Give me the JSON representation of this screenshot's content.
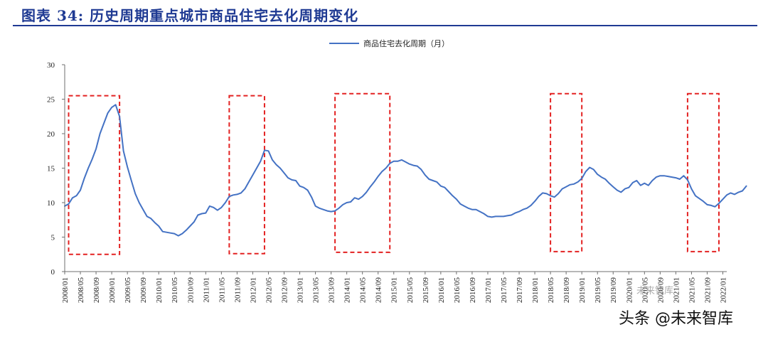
{
  "header": {
    "title": "图表 34: 历史周期重点城市商品住宅去化周期变化"
  },
  "watermark": {
    "text": "头条 @未来智库",
    "logo_text": "未来智库"
  },
  "colors": {
    "title": "#1f3a93",
    "series_line": "#4472c4",
    "highlight_box": "#e32222",
    "axis": "#6f6f6f"
  },
  "chart_data": {
    "type": "line",
    "title": "",
    "xlabel": "",
    "ylabel": "",
    "ylim": [
      0,
      30
    ],
    "yticks": [
      0,
      5,
      10,
      15,
      20,
      25,
      30
    ],
    "grid": false,
    "legend_position": "top-center",
    "xticks": [
      "2008/01",
      "2008/05",
      "2008/09",
      "2009/01",
      "2009/05",
      "2009/09",
      "2010/01",
      "2010/05",
      "2010/09",
      "2011/01",
      "2011/05",
      "2011/09",
      "2012/01",
      "2012/05",
      "2012/09",
      "2013/01",
      "2013/05",
      "2013/09",
      "2014/01",
      "2014/05",
      "2014/09",
      "2015/01",
      "2015/05",
      "2015/09",
      "2016/01",
      "2016/05",
      "2016/09",
      "2017/01",
      "2017/05",
      "2017/09",
      "2018/01",
      "2018/05",
      "2018/09",
      "2019/01",
      "2019/05",
      "2019/09",
      "2020/01",
      "2020/05",
      "2020/09",
      "2021/01",
      "2021/05",
      "2021/09",
      "2022/01"
    ],
    "x_start": "2008/01",
    "series": [
      {
        "name": "商品住宅去化周期（月）",
        "values": [
          9.5,
          9.8,
          10.7,
          11,
          11.8,
          13.5,
          15,
          16.3,
          17.8,
          20,
          21.5,
          23,
          23.8,
          24.2,
          22.5,
          17.5,
          15.2,
          13.2,
          11.3,
          10,
          9,
          8,
          7.7,
          7.1,
          6.6,
          5.8,
          5.7,
          5.6,
          5.5,
          5.2,
          5.5,
          6,
          6.6,
          7.2,
          8.2,
          8.4,
          8.5,
          9.5,
          9.3,
          8.9,
          9.3,
          10,
          10.9,
          11.1,
          11.2,
          11.4,
          12,
          13,
          14,
          15,
          16,
          17.6,
          17.5,
          16.2,
          15.5,
          15,
          14.3,
          13.6,
          13.3,
          13.2,
          12.4,
          12.2,
          11.8,
          10.8,
          9.5,
          9.2,
          9,
          8.8,
          8.7,
          8.8,
          9.2,
          9.7,
          10,
          10.1,
          10.7,
          10.5,
          10.9,
          11.5,
          12.3,
          13,
          13.8,
          14.5,
          15,
          15.7,
          16,
          16,
          16.2,
          15.9,
          15.6,
          15.4,
          15.3,
          14.8,
          14,
          13.4,
          13.2,
          13,
          12.4,
          12.2,
          11.6,
          11,
          10.5,
          9.8,
          9.5,
          9.2,
          9,
          9,
          8.7,
          8.4,
          8,
          7.9,
          8,
          8,
          8,
          8.1,
          8.2,
          8.5,
          8.7,
          9,
          9.2,
          9.6,
          10.2,
          10.9,
          11.4,
          11.3,
          11,
          10.8,
          11.3,
          12,
          12.3,
          12.6,
          12.7,
          13,
          13.5,
          14.5,
          15.1,
          14.8,
          14.1,
          13.7,
          13.4,
          12.8,
          12.3,
          11.8,
          11.5,
          12,
          12.2,
          12.9,
          13.2,
          12.5,
          12.8,
          12.5,
          13.2,
          13.7,
          13.9,
          13.9,
          13.8,
          13.7,
          13.6,
          13.4,
          13.9,
          13.3,
          12,
          11,
          10.6,
          10.2,
          9.7,
          9.6,
          9.4,
          9.9,
          10.5,
          11.1,
          11.4,
          11.2,
          11.5,
          11.7,
          12.4
        ]
      }
    ],
    "highlight_periods": [
      {
        "from": "2008/02",
        "to": "2009/03",
        "y_top": 25.5,
        "y_bottom": 2.5
      },
      {
        "from": "2011/07",
        "to": "2012/04",
        "y_top": 25.5,
        "y_bottom": 2.6
      },
      {
        "from": "2013/10",
        "to": "2014/12",
        "y_top": 25.8,
        "y_bottom": 2.8
      },
      {
        "from": "2018/05",
        "to": "2019/01",
        "y_top": 25.8,
        "y_bottom": 2.9
      },
      {
        "from": "2021/04",
        "to": "2021/12",
        "y_top": 25.8,
        "y_bottom": 2.9
      }
    ]
  }
}
